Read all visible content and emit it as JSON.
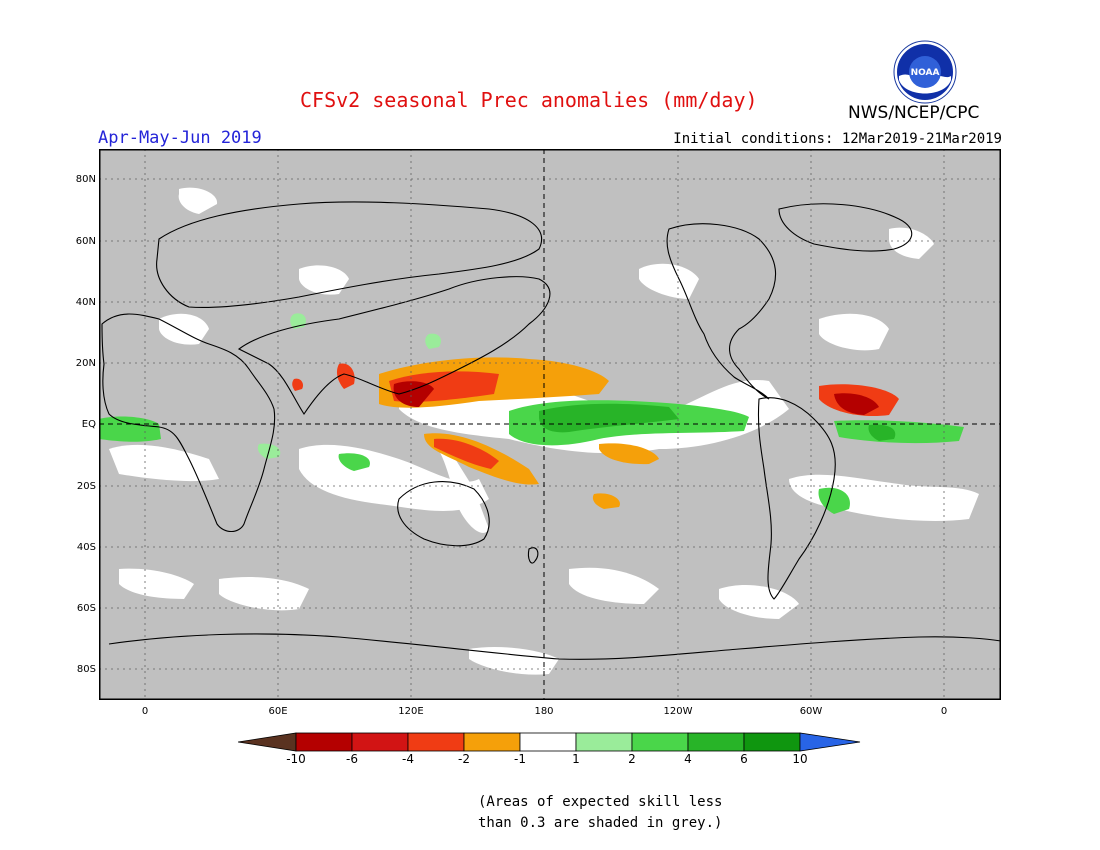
{
  "title": "CFSv2 seasonal Prec anomalies (mm/day)",
  "period": "Apr-May-Jun 2019",
  "initial_conditions": "Initial conditions: 12Mar2019-21Mar2019",
  "agency": "NWS/NCEP/CPC",
  "logo_text": "NOAA",
  "lat_labels": [
    "80N",
    "60N",
    "40N",
    "20N",
    "EQ",
    "20S",
    "40S",
    "60S",
    "80S"
  ],
  "lon_labels": [
    "0",
    "60E",
    "120E",
    "180",
    "120W",
    "60W",
    "0"
  ],
  "colorbar": {
    "labels": [
      "-10",
      "-6",
      "-4",
      "-2",
      "-1",
      "1",
      "2",
      "4",
      "6",
      "10"
    ],
    "colors": [
      "#5a3220",
      "#b40000",
      "#d21414",
      "#f03c14",
      "#f5a00a",
      "#ffffff",
      "#9aec9a",
      "#4ad64a",
      "#28b428",
      "#0f960f",
      "#2864e6"
    ]
  },
  "note_line1": "(Areas of expected skill less",
  "note_line2": "than 0.3 are shaded in grey.)",
  "colors": {
    "grey": "#c0c0c0",
    "title": "#e01010",
    "period": "#2424d8"
  }
}
